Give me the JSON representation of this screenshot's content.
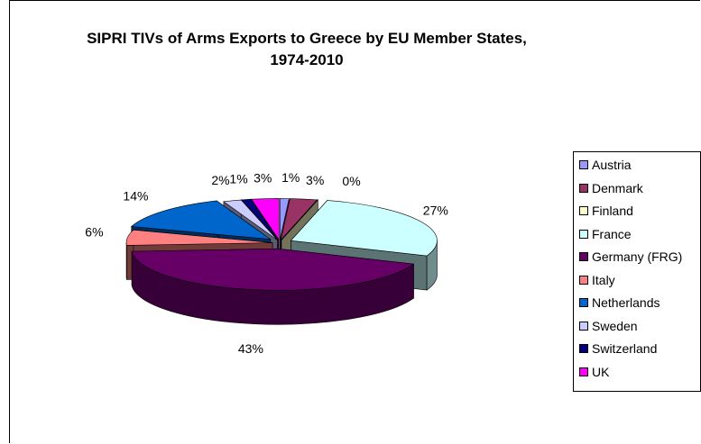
{
  "chart_data": {
    "type": "pie",
    "title": "SIPRI TIVs of Arms Exports to Greece by EU Member States,",
    "subtitle": "1974-2010",
    "legend_position": "right",
    "slices": [
      {
        "name": "Austria",
        "percent": 1,
        "label": "1%",
        "color": "#9999ff"
      },
      {
        "name": "Denmark",
        "percent": 3,
        "label": "3%",
        "color": "#993366"
      },
      {
        "name": "Finland",
        "percent": 0,
        "label": "0%",
        "color": "#ffffcc"
      },
      {
        "name": "France",
        "percent": 27,
        "label": "27%",
        "color": "#ccffff"
      },
      {
        "name": "Germany (FRG)",
        "percent": 43,
        "label": "43%",
        "color": "#660066"
      },
      {
        "name": "Italy",
        "percent": 6,
        "label": "6%",
        "color": "#ff8080"
      },
      {
        "name": "Netherlands",
        "percent": 14,
        "label": "14%",
        "color": "#0066cc"
      },
      {
        "name": "Sweden",
        "percent": 2,
        "label": "2%",
        "color": "#ccccff"
      },
      {
        "name": "Switzerland",
        "percent": 1,
        "label": "1%",
        "color": "#000080"
      },
      {
        "name": "UK",
        "percent": 3,
        "label": "3%",
        "color": "#ff00ff"
      }
    ]
  }
}
